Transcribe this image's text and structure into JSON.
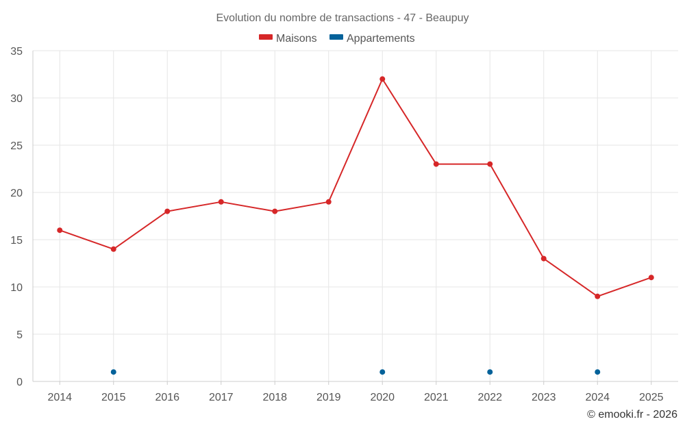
{
  "chart_data": {
    "type": "line",
    "title": "Evolution du nombre de transactions - 47 - Beaupuy",
    "categories": [
      "2014",
      "2015",
      "2016",
      "2017",
      "2018",
      "2019",
      "2020",
      "2021",
      "2022",
      "2023",
      "2024",
      "2025"
    ],
    "series": [
      {
        "name": "Maisons",
        "color": "#d62728",
        "values": [
          16,
          14,
          18,
          19,
          18,
          19,
          32,
          23,
          23,
          13,
          9,
          11
        ],
        "connect": true
      },
      {
        "name": "Appartements",
        "color": "#04629a",
        "values": [
          null,
          1,
          null,
          null,
          null,
          null,
          1,
          null,
          1,
          null,
          1,
          null
        ],
        "connect": false
      }
    ],
    "ylim": [
      0,
      35
    ],
    "yticks": [
      0,
      5,
      10,
      15,
      20,
      25,
      30,
      35
    ],
    "xlabel": "",
    "ylabel": "",
    "grid": true,
    "legend": "top-center"
  },
  "credit": "© emooki.fr - 2026"
}
